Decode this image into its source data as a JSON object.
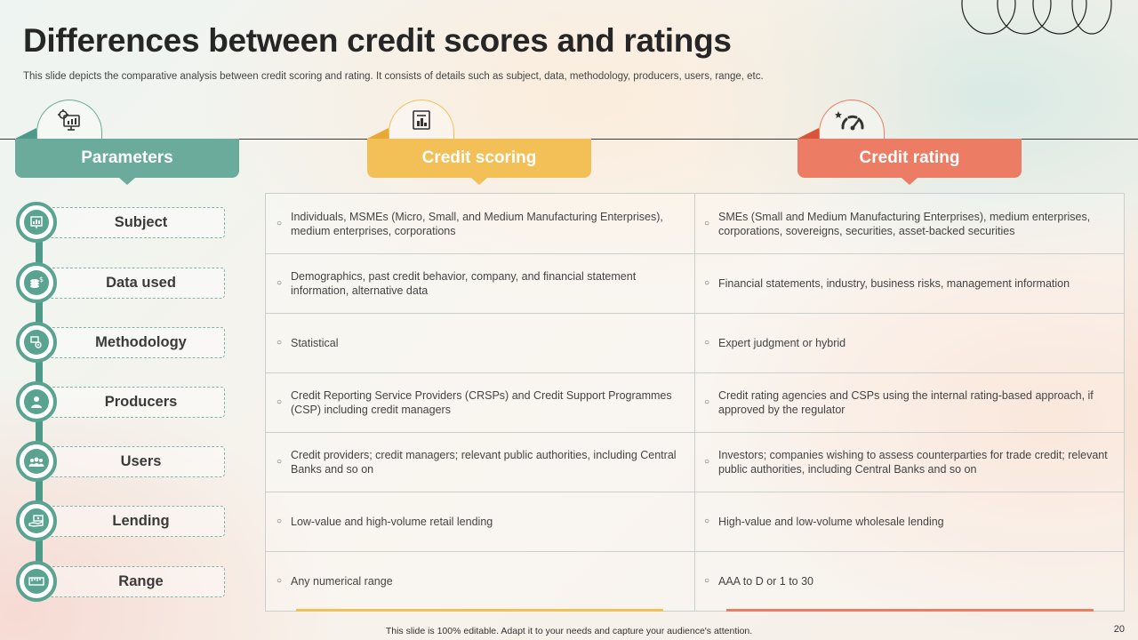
{
  "title": "Differences between credit scores and ratings",
  "subtitle": "This slide depicts the comparative analysis between credit scoring and rating. It consists of details such as subject, data, methodology, producers, users, range, etc.",
  "headers": {
    "parameters": "Parameters",
    "credit_scoring": "Credit scoring",
    "credit_rating": "Credit rating"
  },
  "header_icons": [
    "computer-gear-icon",
    "document-chart-icon",
    "speedometer-icon"
  ],
  "colors": {
    "teal": "#6aab9c",
    "yellow": "#f2c057",
    "coral": "#ec7c63"
  },
  "parameters": [
    {
      "label": "Subject",
      "icon": "monitor-chart-icon"
    },
    {
      "label": "Data used",
      "icon": "coins-dollar-icon"
    },
    {
      "label": "Methodology",
      "icon": "gear-process-icon"
    },
    {
      "label": "Producers",
      "icon": "person-presenter-icon"
    },
    {
      "label": "Users",
      "icon": "group-users-icon"
    },
    {
      "label": "Lending",
      "icon": "hand-money-icon"
    },
    {
      "label": "Range",
      "icon": "ruler-scale-icon"
    }
  ],
  "rows": [
    {
      "scoring": "Individuals, MSMEs (Micro, Small, and Medium Manufacturing Enterprises), medium enterprises, corporations",
      "rating": "SMEs (Small and Medium Manufacturing Enterprises), medium enterprises, corporations, sovereigns, securities, asset-backed securities"
    },
    {
      "scoring": "Demographics, past credit behavior, company, and financial statement information, alternative data",
      "rating": "Financial statements, industry, business risks, management information"
    },
    {
      "scoring": "Statistical",
      "rating": "Expert judgment or hybrid"
    },
    {
      "scoring": "Credit Reporting Service Providers (CRSPs) and Credit Support Programmes (CSP) including credit managers",
      "rating": "Credit rating agencies and CSPs using the internal rating-based approach, if approved by the regulator"
    },
    {
      "scoring": "Credit providers; credit managers; relevant public authorities, including Central Banks and so on",
      "rating": "Investors; companies wishing to assess counterparties for trade credit; relevant public authorities, including Central Banks and so on"
    },
    {
      "scoring": "Low-value and high-volume retail lending",
      "rating": "High-value and low-volume wholesale lending"
    },
    {
      "scoring": "Any numerical range",
      "rating": "AAA to D or 1 to 30"
    }
  ],
  "footer": "This slide is 100% editable. Adapt it to your needs and capture your audience's attention.",
  "page_number": "20"
}
